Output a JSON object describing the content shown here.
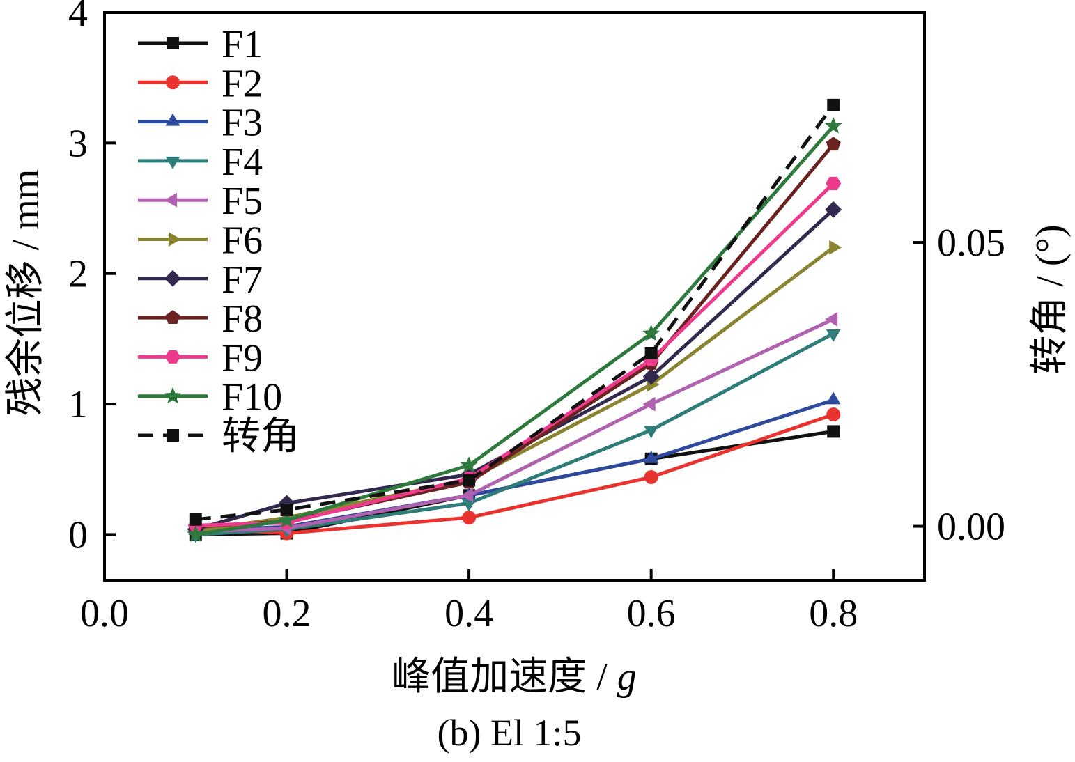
{
  "chart_data": {
    "type": "line",
    "caption": "(b) El 1:5",
    "xlabel": "峰值加速度 / ",
    "xlabel_unit": "g",
    "ylabel": "残余位移 / mm",
    "y2label": "转角 / (°)",
    "xlim": [
      0.0,
      0.9
    ],
    "ylim": [
      -0.35,
      4.0
    ],
    "y2lim": [
      -0.0095,
      0.0905
    ],
    "x_ticks": [
      0.0,
      0.2,
      0.4,
      0.6,
      0.8
    ],
    "x_tick_labels": [
      "0.0",
      "0.2",
      "0.4",
      "0.6",
      "0.8"
    ],
    "y_ticks": [
      0,
      1,
      2,
      3,
      4
    ],
    "y_tick_labels": [
      "0",
      "1",
      "2",
      "3",
      "4"
    ],
    "y2_ticks": [
      0.0,
      0.05
    ],
    "y2_tick_labels": [
      "0.00",
      "0.05"
    ],
    "grid": false,
    "legend_position": "top-left",
    "x": [
      0.1,
      0.2,
      0.4,
      0.6,
      0.8
    ],
    "series": [
      {
        "name": "F1",
        "axis": "left",
        "color": "#111111",
        "marker": "square",
        "values": [
          0.0,
          0.01,
          0.3,
          0.58,
          0.79
        ]
      },
      {
        "name": "F2",
        "axis": "left",
        "color": "#e8332f",
        "marker": "circle",
        "values": [
          0.05,
          0.01,
          0.13,
          0.44,
          0.92
        ]
      },
      {
        "name": "F3",
        "axis": "left",
        "color": "#2e4a9c",
        "marker": "triangle-up",
        "values": [
          0.03,
          0.06,
          0.3,
          0.58,
          1.03
        ]
      },
      {
        "name": "F4",
        "axis": "left",
        "color": "#2e7d78",
        "marker": "triangle-down",
        "values": [
          0.0,
          0.04,
          0.24,
          0.8,
          1.54
        ]
      },
      {
        "name": "F5",
        "axis": "left",
        "color": "#b062b0",
        "marker": "triangle-left",
        "values": [
          0.02,
          0.05,
          0.3,
          1.0,
          1.65
        ]
      },
      {
        "name": "F6",
        "axis": "left",
        "color": "#8a8430",
        "marker": "triangle-right",
        "values": [
          0.03,
          0.13,
          0.42,
          1.15,
          2.2
        ]
      },
      {
        "name": "F7",
        "axis": "left",
        "color": "#33294f",
        "marker": "diamond",
        "values": [
          0.04,
          0.24,
          0.46,
          1.21,
          2.49
        ]
      },
      {
        "name": "F8",
        "axis": "left",
        "color": "#6b2322",
        "marker": "pentagon",
        "values": [
          0.06,
          0.1,
          0.4,
          1.31,
          2.99
        ]
      },
      {
        "name": "F9",
        "axis": "left",
        "color": "#ee3a8c",
        "marker": "hexagon",
        "values": [
          0.07,
          0.09,
          0.43,
          1.34,
          2.69
        ]
      },
      {
        "name": "F10",
        "axis": "left",
        "color": "#2e7a3c",
        "marker": "star",
        "values": [
          0.0,
          0.11,
          0.53,
          1.54,
          3.13
        ]
      },
      {
        "name": "转角",
        "axis": "right",
        "color": "#111111",
        "marker": "square",
        "dashed": true,
        "values": [
          0.0012,
          0.0029,
          0.0081,
          0.0305,
          0.0742
        ]
      }
    ]
  }
}
